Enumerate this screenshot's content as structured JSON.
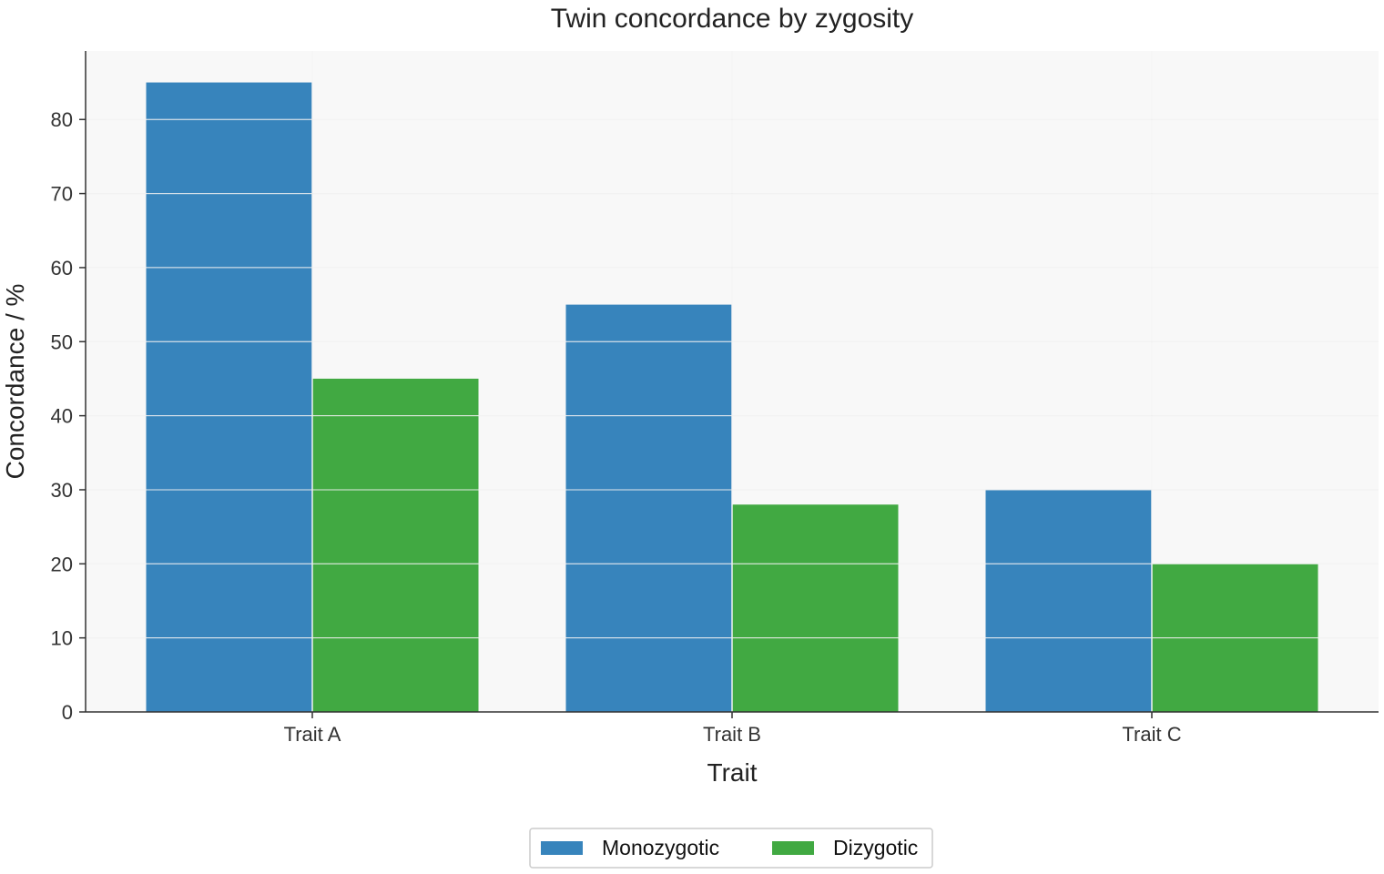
{
  "chart_data": {
    "type": "bar",
    "title": "Twin concordance by zygosity",
    "xlabel": "Trait",
    "ylabel": "Concordance / %",
    "categories": [
      "Trait A",
      "Trait B",
      "Trait C"
    ],
    "series": [
      {
        "name": "Monozygotic",
        "values": [
          85,
          55,
          30
        ],
        "color": "#3784bc"
      },
      {
        "name": "Dizygotic",
        "values": [
          45,
          28,
          20
        ],
        "color": "#41a942"
      }
    ],
    "ylim": [
      0,
      89.25
    ],
    "yticks": [
      0,
      10,
      20,
      30,
      40,
      50,
      60,
      70,
      80
    ],
    "grid": true,
    "legend_position": "bottom-center",
    "plot_background": "#f8f8f8",
    "gridline_color": "#e6e6e6",
    "axis_color": "#333333"
  }
}
